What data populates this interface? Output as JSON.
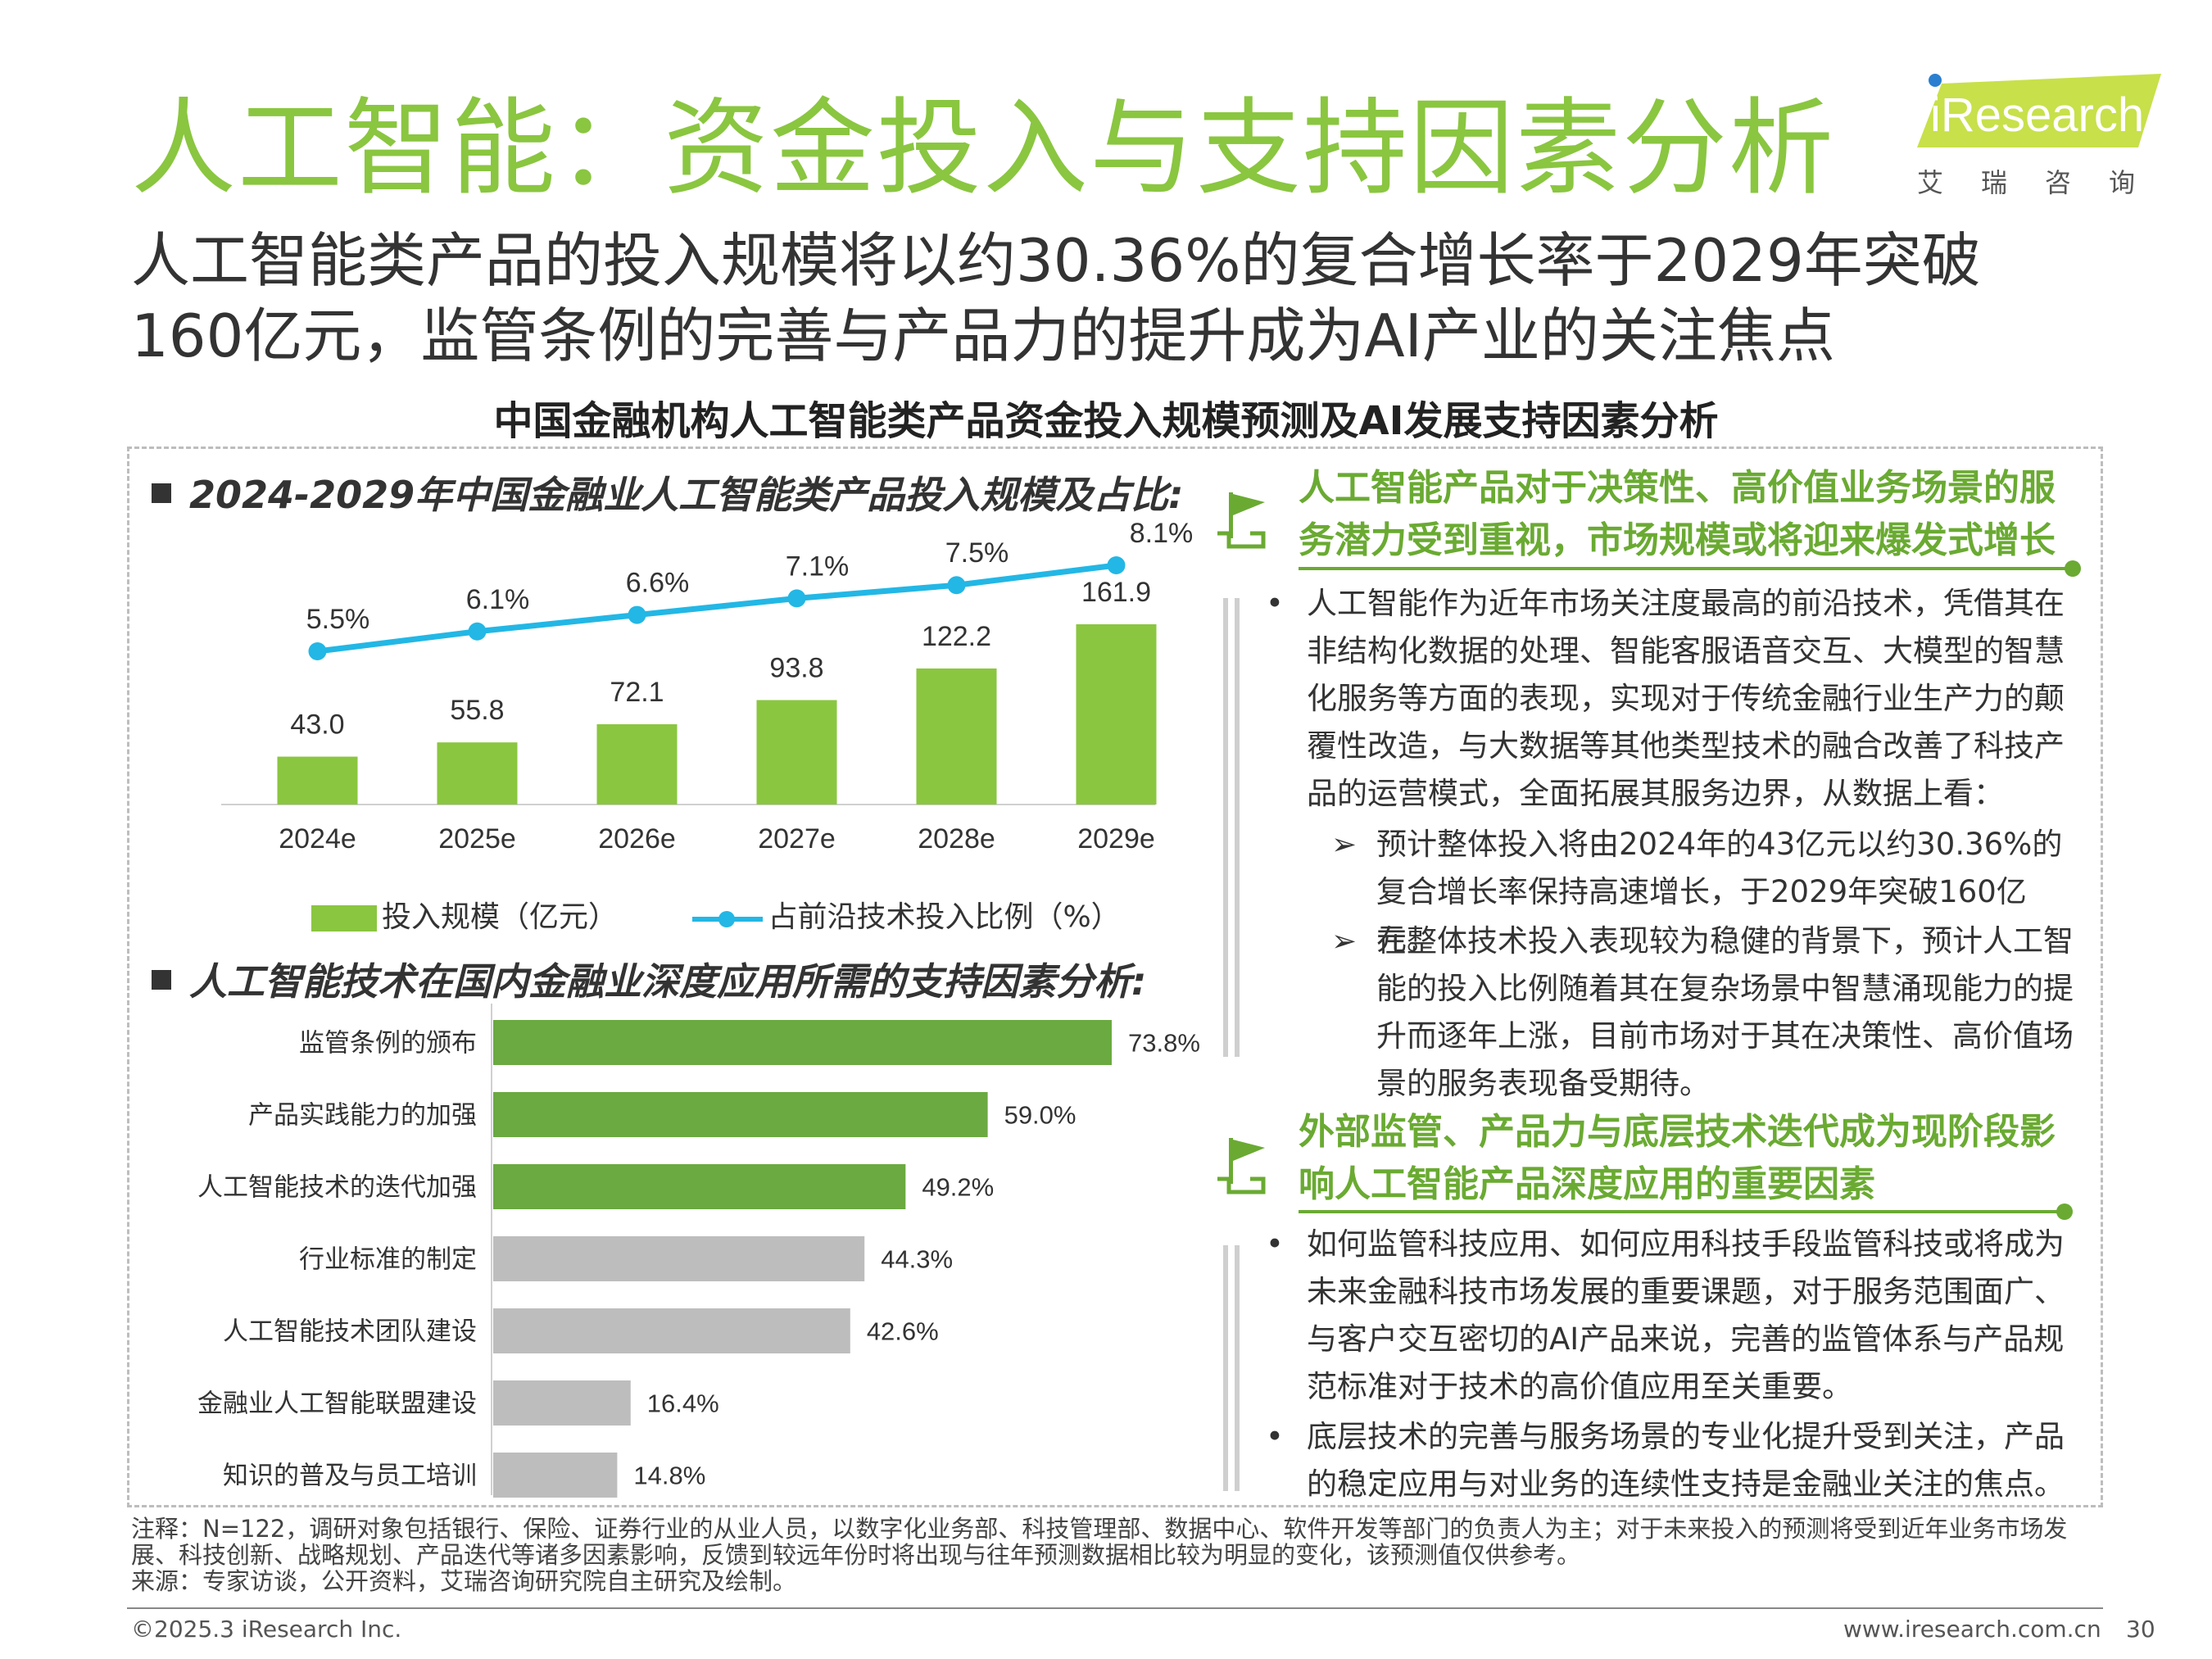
{
  "header": {
    "title": "人工智能：资金投入与支持因素分析",
    "subtitle": "人工智能类产品的投入规模将以约30.36%的复合增长率于2029年突破160亿元，监管条例的完善与产品力的提升成为AI产业的关注焦点",
    "main_heading": "中国金融机构人工智能类产品资金投入规模预测及AI发展支持因素分析"
  },
  "logo": {
    "en": "iResearch",
    "cn": "艾瑞咨询"
  },
  "chart_data": [
    {
      "type": "bar",
      "title": "2024-2029年中国金融业人工智能类产品投入规模及占比:",
      "categories": [
        "2024e",
        "2025e",
        "2026e",
        "2027e",
        "2028e",
        "2029e"
      ],
      "series": [
        {
          "name": "投入规模（亿元）",
          "type": "bar",
          "color": "#8ac640",
          "values": [
            43.0,
            55.8,
            72.1,
            93.8,
            122.2,
            161.9
          ],
          "labels": [
            "43.0",
            "55.8",
            "72.1",
            "93.8",
            "122.2",
            "161.9"
          ]
        },
        {
          "name": "占前沿技术投入比例（%）",
          "type": "line",
          "color": "#23b7e5",
          "values": [
            5.5,
            6.1,
            6.6,
            7.1,
            7.5,
            8.1
          ],
          "labels": [
            "5.5%",
            "6.1%",
            "6.6%",
            "7.1%",
            "7.5%",
            "8.1%"
          ]
        }
      ],
      "grid": false,
      "legend": "bottom"
    },
    {
      "type": "bar",
      "orientation": "horizontal",
      "title": "人工智能技术在国内金融业深度应用所需的支持因素分析:",
      "categories": [
        "监管条例的颁布",
        "产品实践能力的加强",
        "人工智能技术的迭代加强",
        "行业标准的制定",
        "人工智能技术团队建设",
        "金融业人工智能联盟建设",
        "知识的普及与员工培训"
      ],
      "values": [
        73.8,
        59.0,
        49.2,
        44.3,
        42.6,
        16.4,
        14.8
      ],
      "labels": [
        "73.8%",
        "59.0%",
        "49.2%",
        "44.3%",
        "42.6%",
        "16.4%",
        "14.8%"
      ],
      "colors": [
        "#6aaa40",
        "#6aaa40",
        "#6aaa40",
        "#bdbdbd",
        "#bdbdbd",
        "#bdbdbd",
        "#bdbdbd"
      ],
      "grid": false
    }
  ],
  "right": {
    "sec1_title": "人工智能产品对于决策性、高价值业务场景的服务潜力受到重视，市场规模或将迎来爆发式增长",
    "sec1_bullet": "人工智能作为近年市场关注度最高的前沿技术，凭借其在非结构化数据的处理、智能客服语音交互、大模型的智慧化服务等方面的表现，实现对于传统金融行业生产力的颠覆性改造，与大数据等其他类型技术的融合改善了科技产品的运营模式，全面拓展其服务边界，从数据上看：",
    "sec1_sub1": "预计整体投入将由2024年的43亿元以约30.36%的复合增长率保持高速增长，于2029年突破160亿元。",
    "sec1_sub2": "在整体技术投入表现较为稳健的背景下，预计人工智能的投入比例随着其在复杂场景中智慧涌现能力的提升而逐年上涨，目前市场对于其在决策性、高价值场景的服务表现备受期待。",
    "sec2_title": "外部监管、产品力与底层技术迭代成为现阶段影响人工智能产品深度应用的重要因素",
    "sec2_bullet1": "如何监管科技应用、如何应用科技手段监管科技或将成为未来金融科技市场发展的重要课题，对于服务范围面广、与客户交互密切的AI产品来说，完善的监管体系与产品规范标准对于技术的高价值应用至关重要。",
    "sec2_bullet2": "底层技术的完善与服务场景的专业化提升受到关注，产品的稳定应用与对业务的连续性支持是金融业关注的焦点。"
  },
  "notes": {
    "note": "注释：N=122，调研对象包括银行、保险、证券行业的从业人员，以数字化业务部、科技管理部、数据中心、软件开发等部门的负责人为主；对于未来投入的预测将受到近年业务市场发展、科技创新、战略规划、产品迭代等诸多因素影响，反馈到较远年份时将出现与往年预测数据相比较为明显的变化，该预测值仅供参考。",
    "source": "来源：专家访谈，公开资料，艾瑞咨询研究院自主研究及绘制。"
  },
  "footer": {
    "copyright": "©2025.3 iResearch Inc.",
    "url": "www.iresearch.com.cn",
    "page": "30"
  }
}
